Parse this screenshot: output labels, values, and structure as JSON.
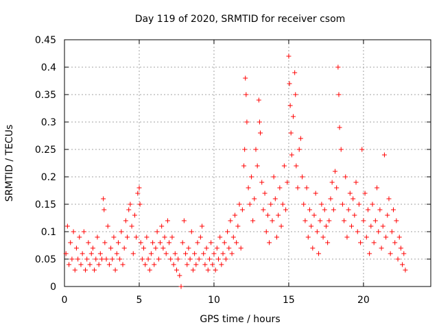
{
  "chart_data": {
    "type": "scatter",
    "title": "Day 119 of 2020, SRMTID for receiver csom",
    "xlabel": "GPS time / hours",
    "ylabel": "SRMTID / TECUs",
    "xlim": [
      0,
      24.5
    ],
    "ylim": [
      0,
      0.45
    ],
    "xticks": [
      0,
      5,
      10,
      15,
      20
    ],
    "xtick_labels": [
      "0",
      "5",
      "10",
      "15",
      "20"
    ],
    "yticks": [
      0,
      0.05,
      0.1,
      0.15,
      0.2,
      0.25,
      0.3,
      0.35,
      0.4,
      0.45
    ],
    "ytick_labels": [
      "0",
      "0.05",
      "0.1",
      "0.15",
      "0.2",
      "0.25",
      "0.3",
      "0.35",
      "0.4",
      "0.45"
    ],
    "grid": true,
    "series": [
      {
        "name": "SRMTID",
        "color": "#ff0000",
        "marker": "plus",
        "points": [
          [
            0.1,
            0.06
          ],
          [
            0.2,
            0.11
          ],
          [
            0.3,
            0.04
          ],
          [
            0.4,
            0.08
          ],
          [
            0.5,
            0.05
          ],
          [
            0.6,
            0.1
          ],
          [
            0.7,
            0.03
          ],
          [
            0.8,
            0.07
          ],
          [
            0.9,
            0.05
          ],
          [
            1.0,
            0.09
          ],
          [
            1.1,
            0.04
          ],
          [
            1.2,
            0.06
          ],
          [
            1.3,
            0.1
          ],
          [
            1.4,
            0.03
          ],
          [
            1.5,
            0.05
          ],
          [
            1.6,
            0.08
          ],
          [
            1.7,
            0.04
          ],
          [
            1.8,
            0.06
          ],
          [
            1.9,
            0.07
          ],
          [
            2.0,
            0.03
          ],
          [
            2.1,
            0.05
          ],
          [
            2.2,
            0.09
          ],
          [
            2.3,
            0.04
          ],
          [
            2.4,
            0.06
          ],
          [
            2.5,
            0.05
          ],
          [
            2.6,
            0.16
          ],
          [
            2.65,
            0.14
          ],
          [
            2.7,
            0.08
          ],
          [
            2.8,
            0.05
          ],
          [
            2.9,
            0.11
          ],
          [
            3.0,
            0.04
          ],
          [
            3.1,
            0.07
          ],
          [
            3.2,
            0.05
          ],
          [
            3.3,
            0.09
          ],
          [
            3.4,
            0.03
          ],
          [
            3.5,
            0.06
          ],
          [
            3.6,
            0.08
          ],
          [
            3.7,
            0.05
          ],
          [
            3.8,
            0.1
          ],
          [
            3.9,
            0.04
          ],
          [
            4.0,
            0.07
          ],
          [
            4.1,
            0.12
          ],
          [
            4.2,
            0.09
          ],
          [
            4.3,
            0.14
          ],
          [
            4.4,
            0.15
          ],
          [
            4.5,
            0.11
          ],
          [
            4.6,
            0.06
          ],
          [
            4.7,
            0.13
          ],
          [
            4.8,
            0.09
          ],
          [
            4.9,
            0.17
          ],
          [
            5.0,
            0.18
          ],
          [
            5.05,
            0.15
          ],
          [
            5.1,
            0.08
          ],
          [
            5.2,
            0.05
          ],
          [
            5.3,
            0.07
          ],
          [
            5.4,
            0.04
          ],
          [
            5.5,
            0.09
          ],
          [
            5.6,
            0.05
          ],
          [
            5.7,
            0.03
          ],
          [
            5.8,
            0.06
          ],
          [
            5.9,
            0.08
          ],
          [
            6.0,
            0.04
          ],
          [
            6.1,
            0.07
          ],
          [
            6.2,
            0.1
          ],
          [
            6.3,
            0.05
          ],
          [
            6.4,
            0.08
          ],
          [
            6.5,
            0.11
          ],
          [
            6.6,
            0.07
          ],
          [
            6.7,
            0.09
          ],
          [
            6.8,
            0.06
          ],
          [
            6.9,
            0.12
          ],
          [
            7.0,
            0.08
          ],
          [
            7.1,
            0.05
          ],
          [
            7.2,
            0.09
          ],
          [
            7.3,
            0.04
          ],
          [
            7.4,
            0.06
          ],
          [
            7.5,
            0.03
          ],
          [
            7.6,
            0.05
          ],
          [
            7.7,
            0.02
          ],
          [
            7.8,
            0.0
          ],
          [
            7.9,
            0.08
          ],
          [
            8.0,
            0.12
          ],
          [
            8.1,
            0.06
          ],
          [
            8.2,
            0.04
          ],
          [
            8.3,
            0.07
          ],
          [
            8.4,
            0.05
          ],
          [
            8.5,
            0.1
          ],
          [
            8.6,
            0.03
          ],
          [
            8.7,
            0.06
          ],
          [
            8.8,
            0.04
          ],
          [
            8.9,
            0.08
          ],
          [
            9.0,
            0.05
          ],
          [
            9.1,
            0.09
          ],
          [
            9.2,
            0.11
          ],
          [
            9.3,
            0.06
          ],
          [
            9.4,
            0.04
          ],
          [
            9.5,
            0.07
          ],
          [
            9.6,
            0.03
          ],
          [
            9.7,
            0.05
          ],
          [
            9.8,
            0.08
          ],
          [
            9.9,
            0.04
          ],
          [
            10.0,
            0.06
          ],
          [
            10.1,
            0.03
          ],
          [
            10.2,
            0.07
          ],
          [
            10.3,
            0.05
          ],
          [
            10.4,
            0.09
          ],
          [
            10.5,
            0.04
          ],
          [
            10.6,
            0.06
          ],
          [
            10.7,
            0.08
          ],
          [
            10.8,
            0.05
          ],
          [
            10.9,
            0.1
          ],
          [
            11.0,
            0.07
          ],
          [
            11.1,
            0.12
          ],
          [
            11.2,
            0.06
          ],
          [
            11.3,
            0.09
          ],
          [
            11.4,
            0.13
          ],
          [
            11.5,
            0.08
          ],
          [
            11.6,
            0.11
          ],
          [
            11.7,
            0.15
          ],
          [
            11.8,
            0.07
          ],
          [
            11.9,
            0.14
          ],
          [
            12.0,
            0.22
          ],
          [
            12.05,
            0.25
          ],
          [
            12.1,
            0.38
          ],
          [
            12.15,
            0.35
          ],
          [
            12.2,
            0.3
          ],
          [
            12.3,
            0.18
          ],
          [
            12.4,
            0.15
          ],
          [
            12.5,
            0.2
          ],
          [
            12.6,
            0.12
          ],
          [
            12.7,
            0.16
          ],
          [
            12.8,
            0.25
          ],
          [
            12.9,
            0.22
          ],
          [
            13.0,
            0.34
          ],
          [
            13.05,
            0.3
          ],
          [
            13.1,
            0.28
          ],
          [
            13.2,
            0.19
          ],
          [
            13.3,
            0.14
          ],
          [
            13.4,
            0.17
          ],
          [
            13.5,
            0.1
          ],
          [
            13.6,
            0.13
          ],
          [
            13.7,
            0.08
          ],
          [
            13.8,
            0.15
          ],
          [
            13.9,
            0.12
          ],
          [
            14.0,
            0.2
          ],
          [
            14.1,
            0.16
          ],
          [
            14.2,
            0.09
          ],
          [
            14.3,
            0.13
          ],
          [
            14.4,
            0.18
          ],
          [
            14.5,
            0.11
          ],
          [
            14.6,
            0.15
          ],
          [
            14.7,
            0.22
          ],
          [
            14.8,
            0.14
          ],
          [
            14.9,
            0.19
          ],
          [
            15.0,
            0.42
          ],
          [
            15.05,
            0.37
          ],
          [
            15.1,
            0.33
          ],
          [
            15.15,
            0.28
          ],
          [
            15.2,
            0.24
          ],
          [
            15.3,
            0.31
          ],
          [
            15.4,
            0.39
          ],
          [
            15.45,
            0.35
          ],
          [
            15.5,
            0.22
          ],
          [
            15.6,
            0.18
          ],
          [
            15.7,
            0.25
          ],
          [
            15.8,
            0.27
          ],
          [
            15.9,
            0.2
          ],
          [
            16.0,
            0.15
          ],
          [
            16.1,
            0.12
          ],
          [
            16.2,
            0.18
          ],
          [
            16.3,
            0.09
          ],
          [
            16.4,
            0.14
          ],
          [
            16.5,
            0.11
          ],
          [
            16.6,
            0.07
          ],
          [
            16.7,
            0.13
          ],
          [
            16.8,
            0.17
          ],
          [
            16.9,
            0.1
          ],
          [
            17.0,
            0.06
          ],
          [
            17.1,
            0.12
          ],
          [
            17.2,
            0.15
          ],
          [
            17.3,
            0.09
          ],
          [
            17.4,
            0.14
          ],
          [
            17.5,
            0.11
          ],
          [
            17.6,
            0.08
          ],
          [
            17.7,
            0.12
          ],
          [
            17.8,
            0.16
          ],
          [
            17.9,
            0.19
          ],
          [
            18.0,
            0.14
          ],
          [
            18.1,
            0.21
          ],
          [
            18.2,
            0.18
          ],
          [
            18.3,
            0.4
          ],
          [
            18.35,
            0.35
          ],
          [
            18.4,
            0.29
          ],
          [
            18.5,
            0.25
          ],
          [
            18.6,
            0.15
          ],
          [
            18.7,
            0.12
          ],
          [
            18.8,
            0.2
          ],
          [
            18.9,
            0.09
          ],
          [
            19.0,
            0.14
          ],
          [
            19.1,
            0.17
          ],
          [
            19.2,
            0.11
          ],
          [
            19.3,
            0.16
          ],
          [
            19.4,
            0.13
          ],
          [
            19.5,
            0.19
          ],
          [
            19.6,
            0.1
          ],
          [
            19.7,
            0.15
          ],
          [
            19.8,
            0.08
          ],
          [
            19.9,
            0.25
          ],
          [
            20.0,
            0.12
          ],
          [
            20.1,
            0.17
          ],
          [
            20.2,
            0.09
          ],
          [
            20.3,
            0.14
          ],
          [
            20.4,
            0.06
          ],
          [
            20.5,
            0.11
          ],
          [
            20.6,
            0.15
          ],
          [
            20.7,
            0.08
          ],
          [
            20.8,
            0.12
          ],
          [
            20.9,
            0.18
          ],
          [
            21.0,
            0.1
          ],
          [
            21.1,
            0.14
          ],
          [
            21.2,
            0.07
          ],
          [
            21.3,
            0.11
          ],
          [
            21.4,
            0.24
          ],
          [
            21.5,
            0.09
          ],
          [
            21.6,
            0.13
          ],
          [
            21.7,
            0.16
          ],
          [
            21.8,
            0.06
          ],
          [
            21.9,
            0.1
          ],
          [
            22.0,
            0.14
          ],
          [
            22.1,
            0.08
          ],
          [
            22.2,
            0.12
          ],
          [
            22.3,
            0.05
          ],
          [
            22.4,
            0.09
          ],
          [
            22.5,
            0.07
          ],
          [
            22.6,
            0.04
          ],
          [
            22.7,
            0.06
          ],
          [
            22.8,
            0.03
          ]
        ]
      }
    ]
  }
}
